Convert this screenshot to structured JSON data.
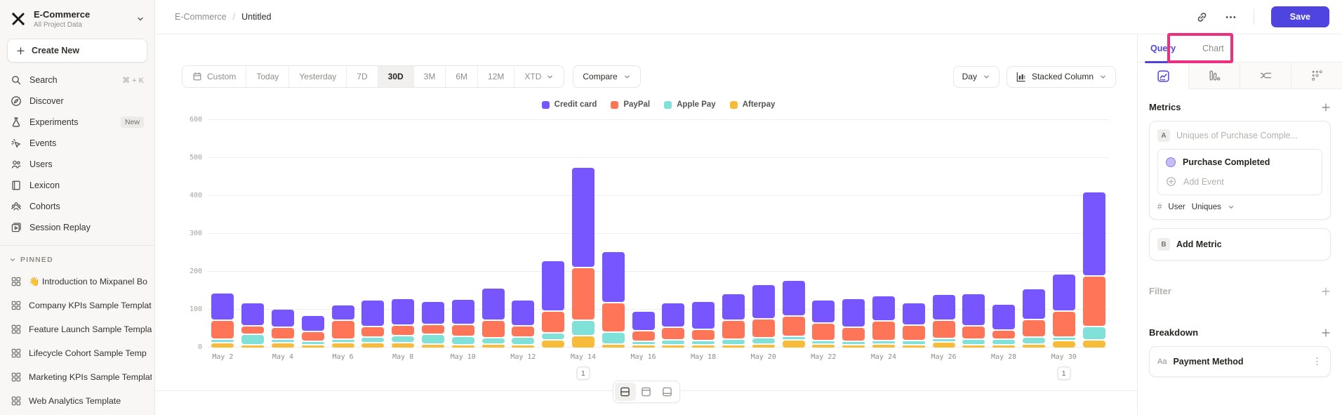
{
  "sidebar": {
    "workspace": {
      "name": "E-Commerce",
      "subtitle": "All Project Data"
    },
    "create_new_label": "Create New",
    "nav": [
      {
        "icon": "search-icon",
        "label": "Search",
        "shortcut": "⌘ + K"
      },
      {
        "icon": "discover-icon",
        "label": "Discover"
      },
      {
        "icon": "experiments-icon",
        "label": "Experiments",
        "badge": "New"
      },
      {
        "icon": "events-icon",
        "label": "Events"
      },
      {
        "icon": "users-icon",
        "label": "Users"
      },
      {
        "icon": "lexicon-icon",
        "label": "Lexicon"
      },
      {
        "icon": "cohorts-icon",
        "label": "Cohorts"
      },
      {
        "icon": "session-replay-icon",
        "label": "Session Replay"
      }
    ],
    "pinned_header": "PINNED",
    "pinned": [
      "👋 Introduction to Mixpanel Bo",
      "Company KPIs Sample Templat",
      "Feature Launch Sample Templa",
      "Lifecycle Cohort Sample Temp",
      "Marketing KPIs Sample Templat",
      "Web Analytics Template"
    ]
  },
  "header": {
    "breadcrumb_root": "E-Commerce",
    "breadcrumb_sep": "/",
    "breadcrumb_page": "Untitled",
    "save_label": "Save"
  },
  "controls": {
    "date_ranges": [
      "Custom",
      "Today",
      "Yesterday",
      "7D",
      "30D",
      "3M",
      "6M",
      "12M",
      "XTD"
    ],
    "selected_range": "30D",
    "compare_label": "Compare",
    "granularity_label": "Day",
    "chart_type_label": "Stacked Column"
  },
  "panel": {
    "tabs": {
      "query": "Query",
      "chart": "Chart"
    },
    "active_tab": "Query",
    "metrics_title": "Metrics",
    "metric_a": {
      "badge": "A",
      "placeholder": "Uniques of Purchase Comple...",
      "event": "Purchase Completed",
      "add_event_label": "Add Event",
      "measure_prefix": "#",
      "measure_entity": "User",
      "measure_type": "Uniques"
    },
    "metric_b": {
      "badge": "B",
      "label": "Add Metric"
    },
    "filter_title": "Filter",
    "breakdown_title": "Breakdown",
    "breakdown_item": {
      "badge": "Aa",
      "label": "Payment Method"
    }
  },
  "colors": {
    "accent": "#4f44e0",
    "annotation_pink": "#ee2f7e"
  },
  "chart_data": {
    "type": "bar",
    "stacked": true,
    "categories": [
      "May 2",
      "May 3",
      "May 4",
      "May 5",
      "May 6",
      "May 7",
      "May 8",
      "May 9",
      "May 10",
      "May 11",
      "May 12",
      "May 13",
      "May 14",
      "May 15",
      "May 16",
      "May 17",
      "May 18",
      "May 19",
      "May 20",
      "May 21",
      "May 22",
      "May 23",
      "May 24",
      "May 25",
      "May 26",
      "May 27",
      "May 28",
      "May 29",
      "May 30",
      "May 31"
    ],
    "x_label_every": 2,
    "series": [
      {
        "name": "Afterpay",
        "color": "#f8bc3b",
        "values": [
          14,
          9,
          15,
          9,
          15,
          15,
          14,
          12,
          9,
          12,
          6,
          23,
          34,
          12,
          9,
          10,
          9,
          10,
          12,
          22,
          12,
          10,
          12,
          10,
          16,
          9,
          9,
          11,
          20,
          23
        ]
      },
      {
        "name": "Apple Pay",
        "color": "#80e1d9",
        "values": [
          10,
          28,
          6,
          9,
          10,
          15,
          20,
          25,
          22,
          16,
          20,
          17,
          40,
          31,
          9,
          12,
          12,
          14,
          15,
          10,
          8,
          8,
          8,
          11,
          10,
          14,
          14,
          19,
          10,
          35
        ]
      },
      {
        "name": "PayPal",
        "color": "#ff7557",
        "values": [
          51,
          22,
          31,
          26,
          49,
          28,
          28,
          26,
          32,
          47,
          30,
          58,
          139,
          77,
          27,
          33,
          28,
          50,
          50,
          53,
          45,
          37,
          51,
          40,
          48,
          36,
          25,
          46,
          69,
          132
        ]
      },
      {
        "name": "Credit card",
        "color": "#7856ff",
        "values": [
          71,
          62,
          48,
          43,
          41,
          69,
          69,
          61,
          67,
          84,
          68,
          133,
          265,
          135,
          52,
          66,
          74,
          71,
          92,
          95,
          62,
          75,
          66,
          60,
          69,
          86,
          68,
          82,
          98,
          223
        ]
      }
    ],
    "legend_order": [
      "Credit card",
      "PayPal",
      "Apple Pay",
      "Afterpay"
    ],
    "ylim": [
      0,
      600
    ],
    "yticks": [
      0,
      100,
      200,
      300,
      400,
      500,
      600
    ],
    "grid": true,
    "legend_position": "top-center",
    "annotations": [
      {
        "index": 12,
        "label": "1"
      },
      {
        "index": 28,
        "label": "1"
      }
    ]
  }
}
